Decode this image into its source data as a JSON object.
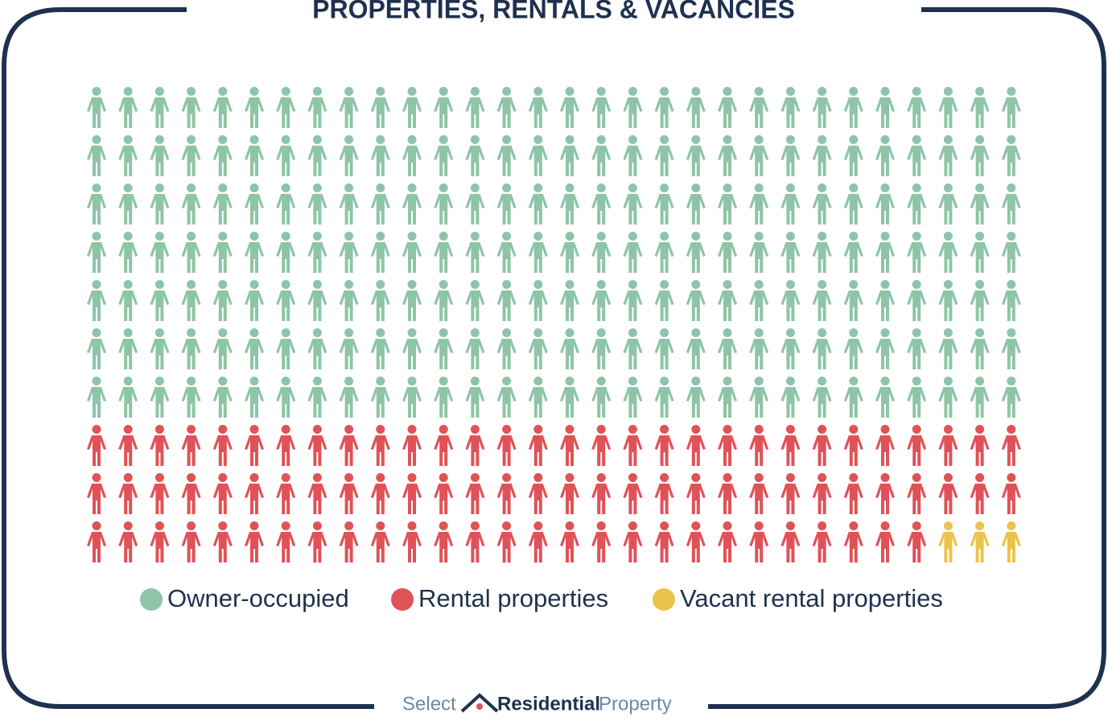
{
  "chart_data": {
    "type": "pictograph",
    "title": "PROPERTIES, RENTALS & VACANCIES",
    "series": [
      {
        "name": "Owner-occupied",
        "color": "#8dc5a6",
        "values": [
          210
        ]
      },
      {
        "name": "Rental properties",
        "color": "#e05257",
        "values": [
          87
        ]
      },
      {
        "name": "Vacant rental properties",
        "color": "#ecc34a",
        "values": [
          3
        ]
      }
    ]
  },
  "brand": {
    "select": "Select",
    "residential": "Residential",
    "property": "Property"
  }
}
